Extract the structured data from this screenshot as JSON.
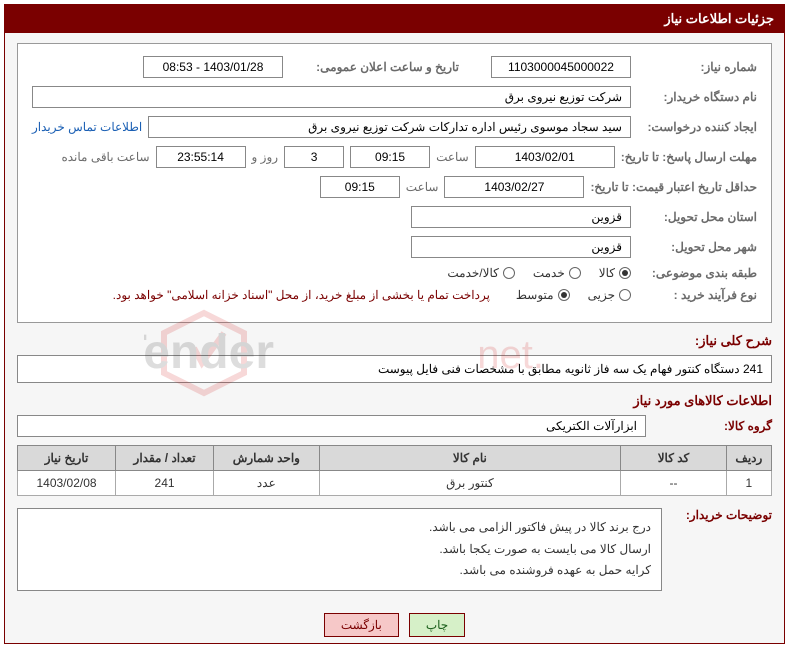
{
  "panel": {
    "title": "جزئیات اطلاعات نیاز"
  },
  "fields": {
    "need_no_label": "شماره نیاز:",
    "need_no": "1103000045000022",
    "announce_label": "تاریخ و ساعت اعلان عمومی:",
    "announce_value": "1403/01/28 - 08:53",
    "buyer_org_label": "نام دستگاه خریدار:",
    "buyer_org": "شرکت توزیع نیروی برق",
    "requester_label": "ایجاد کننده درخواست:",
    "requester": "سید سجاد موسوی رئیس اداره تدارکات شرکت توزیع نیروی برق",
    "contact_link": "اطلاعات تماس خریدار",
    "deadline_send_label": "مهلت ارسال پاسخ: تا تاریخ:",
    "deadline_date": "1403/02/01",
    "time_label": "ساعت",
    "deadline_time": "09:15",
    "days_remaining": "3",
    "days_word": "روز و",
    "countdown": "23:55:14",
    "remaining_label": "ساعت باقی مانده",
    "min_valid_label": "حداقل تاریخ اعتبار قیمت: تا تاریخ:",
    "min_valid_date": "1403/02/27",
    "min_valid_time": "09:15",
    "province_label": "استان محل تحویل:",
    "province": "قزوین",
    "city_label": "شهر محل تحویل:",
    "city": "قزوین",
    "category_label": "طبقه بندی موضوعی:",
    "purchase_type_label": "نوع فرآیند خرید :",
    "purchase_note": "پرداخت تمام یا بخشی از مبلغ خرید، از محل \"اسناد خزانه اسلامی\" خواهد بود."
  },
  "radios": {
    "cat": [
      {
        "label": "کالا",
        "checked": true
      },
      {
        "label": "خدمت",
        "checked": false
      },
      {
        "label": "کالا/خدمت",
        "checked": false
      }
    ],
    "ptype": [
      {
        "label": "جزیی",
        "checked": false
      },
      {
        "label": "متوسط",
        "checked": true
      }
    ]
  },
  "summary": {
    "title": "شرح کلی نیاز:",
    "text": "241 دستگاه کنتور فهام یک سه فاز ثانویه مطابق با مشخصات فنی فایل پیوست"
  },
  "goods_section": {
    "title": "اطلاعات کالاهای مورد نیاز",
    "group_label": "گروه کالا:",
    "group_value": "ابزارآلات الکتریکی"
  },
  "table": {
    "headers": [
      "ردیف",
      "کد کالا",
      "نام کالا",
      "واحد شمارش",
      "تعداد / مقدار",
      "تاریخ نیاز"
    ],
    "rows": [
      [
        "1",
        "--",
        "کنتور برق",
        "عدد",
        "241",
        "1403/02/08"
      ]
    ]
  },
  "buyer_notes": {
    "label": "توضیحات خریدار:",
    "lines": [
      "درج برند کالا در پیش فاکتور الزامی می باشد.",
      "ارسال کالا می بایست به صورت یکجا باشد.",
      "کرایه حمل به عهده فروشنده می باشد."
    ]
  },
  "buttons": {
    "print": "چاپ",
    "back": "بازگشت"
  }
}
